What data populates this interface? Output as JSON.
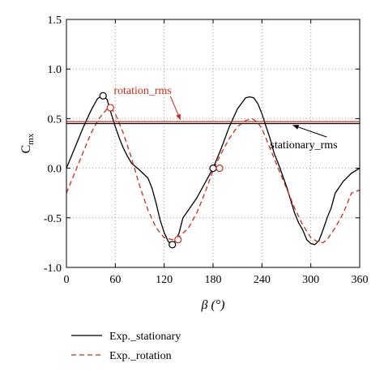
{
  "chart_data": {
    "type": "line",
    "xlabel": "β (°)",
    "ylabel_main": "C",
    "ylabel_sub": "mx",
    "xlim": [
      0,
      360
    ],
    "ylim": [
      -1.0,
      1.5
    ],
    "xticks": [
      0,
      60,
      120,
      180,
      240,
      300,
      360
    ],
    "xtick_labels": [
      "0",
      "60",
      "120",
      "180",
      "240",
      "300",
      "360"
    ],
    "yticks": [
      -1.0,
      -0.5,
      0.0,
      0.5,
      1.0,
      1.5
    ],
    "ytick_labels": [
      "-1.0",
      "-0.5",
      "0.0",
      "0.5",
      "1.0",
      "1.5"
    ],
    "grid": true,
    "legend_position": "bottom-left, below plot",
    "series": [
      {
        "name": "Exp._stationary",
        "color": "#000000",
        "style": "solid",
        "x": [
          0,
          10,
          20,
          30,
          38,
          45,
          50,
          55,
          60,
          65,
          70,
          75,
          80,
          90,
          95,
          100,
          105,
          110,
          115,
          120,
          125,
          130,
          133,
          138,
          143,
          150,
          160,
          170,
          180,
          190,
          200,
          210,
          220,
          225,
          230,
          235,
          240,
          245,
          250,
          255,
          260,
          270,
          280,
          285,
          290,
          295,
          300,
          305,
          310,
          315,
          320,
          325,
          330,
          340,
          350,
          360
        ],
        "y": [
          0.0,
          0.2,
          0.4,
          0.58,
          0.7,
          0.74,
          0.69,
          0.55,
          0.42,
          0.3,
          0.2,
          0.12,
          0.05,
          -0.02,
          -0.06,
          -0.1,
          -0.2,
          -0.35,
          -0.52,
          -0.65,
          -0.74,
          -0.77,
          -0.74,
          -0.66,
          -0.5,
          -0.42,
          -0.3,
          -0.15,
          0.0,
          0.2,
          0.42,
          0.6,
          0.71,
          0.72,
          0.71,
          0.65,
          0.55,
          0.42,
          0.3,
          0.15,
          0.05,
          -0.18,
          -0.45,
          -0.55,
          -0.62,
          -0.72,
          -0.76,
          -0.77,
          -0.73,
          -0.62,
          -0.5,
          -0.4,
          -0.25,
          -0.13,
          -0.05,
          0.0
        ]
      },
      {
        "name": "Exp._rotation",
        "color": "#cc2a1a",
        "style": "dashed",
        "x": [
          0,
          10,
          20,
          30,
          40,
          50,
          55,
          60,
          70,
          80,
          90,
          100,
          110,
          120,
          130,
          140,
          150,
          160,
          170,
          180,
          190,
          200,
          210,
          220,
          228,
          235,
          240,
          250,
          260,
          270,
          280,
          290,
          300,
          310,
          315,
          320,
          330,
          340,
          350,
          360
        ],
        "y": [
          -0.25,
          -0.05,
          0.15,
          0.35,
          0.5,
          0.6,
          0.6,
          0.55,
          0.35,
          0.1,
          -0.18,
          -0.42,
          -0.6,
          -0.7,
          -0.72,
          -0.68,
          -0.6,
          -0.45,
          -0.25,
          -0.02,
          0.15,
          0.3,
          0.42,
          0.48,
          0.5,
          0.46,
          0.4,
          0.2,
          0.0,
          -0.2,
          -0.4,
          -0.57,
          -0.7,
          -0.75,
          -0.75,
          -0.72,
          -0.6,
          -0.45,
          -0.25,
          -0.22
        ]
      },
      {
        "name": "rotation_rms",
        "color": "#cc2a1a",
        "style": "solid",
        "x": [
          0,
          360
        ],
        "y": [
          0.47,
          0.47
        ]
      },
      {
        "name": "stationary_rms",
        "color": "#000000",
        "style": "solid",
        "x": [
          0,
          360
        ],
        "y": [
          0.45,
          0.45
        ]
      }
    ],
    "markers": [
      {
        "series": "Exp._stationary",
        "x": 45,
        "y": 0.73,
        "color": "#000000"
      },
      {
        "series": "Exp._rotation",
        "x": 54,
        "y": 0.61,
        "color": "#cc2a1a"
      },
      {
        "series": "Exp._stationary",
        "x": 130,
        "y": -0.77,
        "color": "#000000"
      },
      {
        "series": "Exp._rotation",
        "x": 137,
        "y": -0.72,
        "color": "#cc2a1a"
      },
      {
        "series": "Exp._stationary",
        "x": 180,
        "y": 0.0,
        "color": "#000000"
      },
      {
        "series": "Exp._rotation",
        "x": 188,
        "y": 0.0,
        "color": "#cc2a1a"
      }
    ],
    "annotations": [
      {
        "text": "rotation_rms",
        "color": "#cc2a1a",
        "tx": 58,
        "ty": 0.75,
        "ax": 140,
        "ay": 0.47
      },
      {
        "text": "stationary_rms",
        "color": "#000000",
        "tx": 250,
        "ty": 0.2,
        "ax": 278,
        "ay": 0.45
      }
    ],
    "legend": [
      {
        "label": "Exp._stationary",
        "color": "#000000",
        "style": "solid"
      },
      {
        "label": "Exp._rotation",
        "color": "#cc2a1a",
        "style": "dashed"
      }
    ]
  }
}
